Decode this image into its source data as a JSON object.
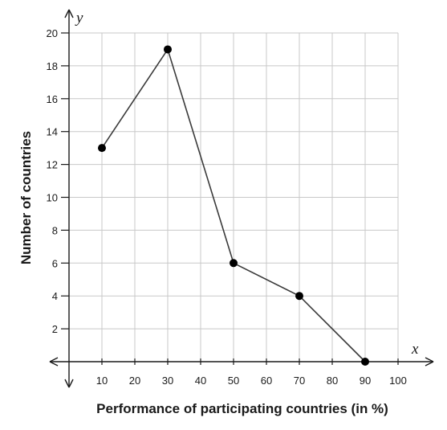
{
  "chart_data": {
    "type": "line",
    "x": [
      10,
      30,
      50,
      70,
      90
    ],
    "series": [
      {
        "values": [
          13,
          19,
          6,
          4,
          0
        ]
      }
    ],
    "xlabel": "Performance of participating countries (in %)",
    "ylabel": "Number of countries",
    "x_axis_var": "x",
    "y_axis_var": "y",
    "xlim": [
      0,
      100
    ],
    "ylim": [
      0,
      20
    ],
    "xticks": [
      "10",
      "20",
      "30",
      "40",
      "50",
      "60",
      "70",
      "80",
      "90",
      "100"
    ],
    "yticks": [
      "2",
      "4",
      "6",
      "8",
      "10",
      "12",
      "14",
      "16",
      "18",
      "20"
    ],
    "grid": true,
    "marker": "filled-circle",
    "colors": {
      "line": "#3a3a3a",
      "point": "#000000",
      "grid": "#c8c8c8",
      "axis": "#1a1a1a"
    }
  }
}
